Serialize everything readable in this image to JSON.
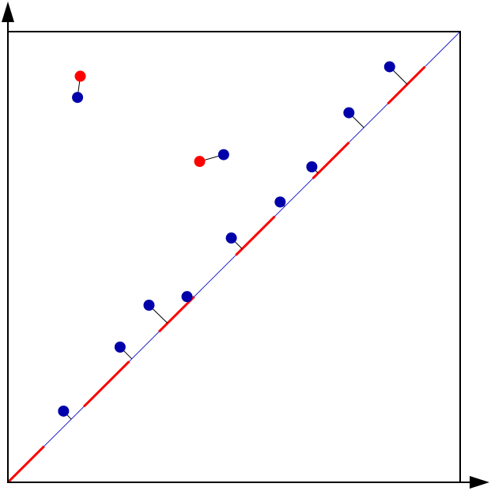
{
  "colors": {
    "background": "#ffffff",
    "frame": "#000000",
    "diagonal": "#2222cc",
    "matched_segment": "#ff0000",
    "point_a": "#0000aa",
    "point_b": "#ff0000",
    "link": "#000000"
  },
  "icons": {
    "x_axis": "arrow-right-icon",
    "y_axis": "arrow-up-icon"
  },
  "diagram": {
    "type": "persistence-diagram-matching",
    "domain": [
      0,
      1
    ],
    "diagonal_red_segments": [
      [
        0.0,
        0.08
      ],
      [
        0.168,
        0.268
      ],
      [
        0.334,
        0.412
      ],
      [
        0.504,
        0.59
      ],
      [
        0.674,
        0.754
      ],
      [
        0.84,
        0.922
      ]
    ],
    "diagonal_matches": [
      {
        "point": [
          0.123,
          0.158
        ],
        "foot": [
          0.14,
          0.14
        ]
      },
      {
        "point": [
          0.248,
          0.3
        ],
        "foot": [
          0.274,
          0.274
        ]
      },
      {
        "point": [
          0.312,
          0.393
        ],
        "foot": [
          0.353,
          0.353
        ]
      },
      {
        "point": [
          0.396,
          0.412
        ],
        "foot": [
          0.404,
          0.404
        ]
      },
      {
        "point": [
          0.494,
          0.542
        ],
        "foot": [
          0.518,
          0.518
        ]
      },
      {
        "point": [
          0.602,
          0.622
        ],
        "foot": [
          0.612,
          0.612
        ]
      },
      {
        "point": [
          0.672,
          0.7
        ],
        "foot": [
          0.686,
          0.686
        ]
      },
      {
        "point": [
          0.754,
          0.82
        ],
        "foot": [
          0.787,
          0.787
        ]
      },
      {
        "point": [
          0.844,
          0.922
        ],
        "foot": [
          0.883,
          0.883
        ]
      }
    ],
    "point_matches": [
      {
        "a": [
          0.154,
          0.854
        ],
        "b": [
          0.16,
          0.901
        ]
      },
      {
        "a": [
          0.477,
          0.727
        ],
        "b": [
          0.424,
          0.712
        ]
      }
    ]
  }
}
